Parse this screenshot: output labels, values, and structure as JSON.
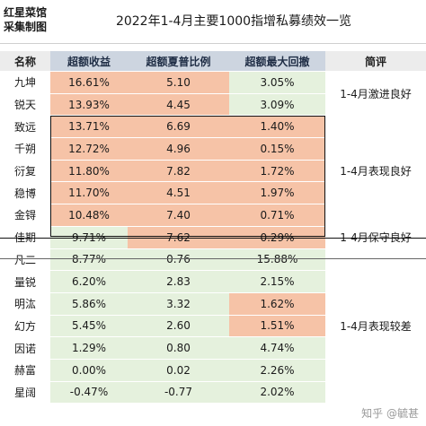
{
  "brand": {
    "line1": "红星菜馆",
    "line2": "采集制图"
  },
  "title": "2022年1-4月主要1000指增私募绩效一览",
  "columns": {
    "name": "名称",
    "excess_return": "超额收益",
    "excess_sharpe": "超额夏普比例",
    "max_drawdown": "超额最大回撤",
    "comment": "简评"
  },
  "rows": [
    {
      "name": "九坤",
      "excess_return": "16.61%",
      "excess_sharpe": "5.10",
      "max_drawdown": "3.05%",
      "bg": [
        "orange",
        "orange",
        "green"
      ]
    },
    {
      "name": "锐天",
      "excess_return": "13.93%",
      "excess_sharpe": "4.45",
      "max_drawdown": "3.09%",
      "bg": [
        "orange",
        "orange",
        "green"
      ]
    },
    {
      "name": "致远",
      "excess_return": "13.71%",
      "excess_sharpe": "6.69",
      "max_drawdown": "1.40%",
      "bg": [
        "orange",
        "orange",
        "orange"
      ]
    },
    {
      "name": "千朔",
      "excess_return": "12.72%",
      "excess_sharpe": "4.96",
      "max_drawdown": "0.15%",
      "bg": [
        "orange",
        "orange",
        "orange"
      ]
    },
    {
      "name": "衍复",
      "excess_return": "11.80%",
      "excess_sharpe": "7.82",
      "max_drawdown": "1.72%",
      "bg": [
        "orange",
        "orange",
        "orange"
      ]
    },
    {
      "name": "稳博",
      "excess_return": "11.70%",
      "excess_sharpe": "4.51",
      "max_drawdown": "1.97%",
      "bg": [
        "orange",
        "orange",
        "orange"
      ]
    },
    {
      "name": "金锝",
      "excess_return": "10.48%",
      "excess_sharpe": "7.40",
      "max_drawdown": "0.71%",
      "bg": [
        "orange",
        "orange",
        "orange"
      ]
    },
    {
      "name": "佳期",
      "excess_return": "9.71%",
      "excess_sharpe": "7.62",
      "max_drawdown": "0.29%",
      "bg": [
        "green",
        "orange",
        "orange"
      ]
    },
    {
      "name": "凡二",
      "excess_return": "8.77%",
      "excess_sharpe": "0.76",
      "max_drawdown": "15.88%",
      "bg": [
        "green",
        "green",
        "green"
      ]
    },
    {
      "name": "量锐",
      "excess_return": "6.20%",
      "excess_sharpe": "2.83",
      "max_drawdown": "2.15%",
      "bg": [
        "green",
        "green",
        "green"
      ]
    },
    {
      "name": "明汯",
      "excess_return": "5.86%",
      "excess_sharpe": "3.32",
      "max_drawdown": "1.62%",
      "bg": [
        "green",
        "green",
        "orange"
      ]
    },
    {
      "name": "幻方",
      "excess_return": "5.45%",
      "excess_sharpe": "2.60",
      "max_drawdown": "1.51%",
      "bg": [
        "green",
        "green",
        "orange"
      ]
    },
    {
      "name": "因诺",
      "excess_return": "1.29%",
      "excess_sharpe": "0.80",
      "max_drawdown": "4.74%",
      "bg": [
        "green",
        "green",
        "green"
      ]
    },
    {
      "name": "赫富",
      "excess_return": "0.00%",
      "excess_sharpe": "0.02",
      "max_drawdown": "2.26%",
      "bg": [
        "green",
        "green",
        "green"
      ]
    },
    {
      "name": "星阔",
      "excess_return": "-0.47%",
      "excess_sharpe": "-0.77",
      "max_drawdown": "2.02%",
      "bg": [
        "green",
        "green",
        "green"
      ]
    }
  ],
  "comments": [
    {
      "text": "1-4月激进良好",
      "start": 0,
      "span": 2
    },
    {
      "text": "1-4月表现良好",
      "start": 2,
      "span": 5
    },
    {
      "text": "1-4月保守良好",
      "start": 7,
      "span": 1
    },
    {
      "text": "1-4月表现较差",
      "start": 8,
      "span": 7
    }
  ],
  "watermark": "知乎 @毓甚",
  "colors": {
    "orange": "#f6c3a7",
    "green": "#e5f1dd",
    "header": "#cdd5e0"
  }
}
